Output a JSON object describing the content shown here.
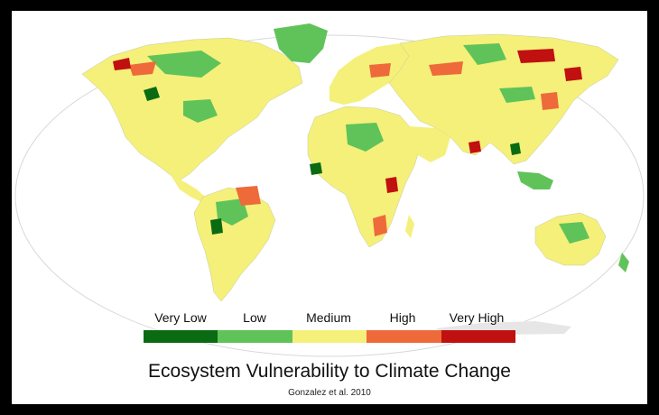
{
  "map": {
    "legend": {
      "items": [
        {
          "label": "Very Low",
          "color": "#0a6b12"
        },
        {
          "label": "Low",
          "color": "#5fc35a"
        },
        {
          "label": "Medium",
          "color": "#f4f07a"
        },
        {
          "label": "High",
          "color": "#ee6a3a"
        },
        {
          "label": "Very High",
          "color": "#c01010"
        }
      ]
    },
    "title": "Ecosystem Vulnerability to Climate Change",
    "credit": "Gonzalez et al. 2010",
    "colors": {
      "background": "#000000",
      "ocean": "#ffffff",
      "land_base": "#f4f07a"
    }
  }
}
